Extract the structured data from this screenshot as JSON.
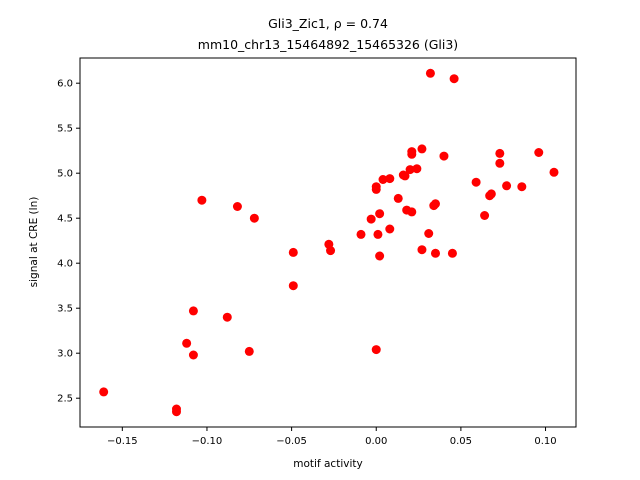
{
  "chart_data": {
    "type": "scatter",
    "title_line1": "Gli3_Zic1, ρ = 0.74",
    "title_line2": "mm10_chr13_15464892_15465326 (Gli3)",
    "xlabel": "motif activity",
    "ylabel": "signal at CRE (ln)",
    "xlim": [
      -0.175,
      0.118
    ],
    "ylim": [
      2.18,
      6.28
    ],
    "xticks": [
      "−0.15",
      "−0.10",
      "−0.05",
      "0.00",
      "0.05",
      "0.10"
    ],
    "xtick_values": [
      -0.15,
      -0.1,
      -0.05,
      0.0,
      0.05,
      0.1
    ],
    "yticks": [
      "2.5",
      "3.0",
      "3.5",
      "4.0",
      "4.5",
      "5.0",
      "5.5",
      "6.0"
    ],
    "ytick_values": [
      2.5,
      3.0,
      3.5,
      4.0,
      4.5,
      5.0,
      5.5,
      6.0
    ],
    "grid": false,
    "point_color": "#ff0000",
    "points": [
      {
        "x": -0.161,
        "y": 2.57
      },
      {
        "x": -0.118,
        "y": 2.38
      },
      {
        "x": -0.118,
        "y": 2.35
      },
      {
        "x": -0.112,
        "y": 3.11
      },
      {
        "x": -0.108,
        "y": 3.47
      },
      {
        "x": -0.108,
        "y": 2.98
      },
      {
        "x": -0.103,
        "y": 4.7
      },
      {
        "x": -0.088,
        "y": 3.4
      },
      {
        "x": -0.082,
        "y": 4.63
      },
      {
        "x": -0.075,
        "y": 3.02
      },
      {
        "x": -0.072,
        "y": 4.5
      },
      {
        "x": -0.049,
        "y": 4.12
      },
      {
        "x": -0.049,
        "y": 3.75
      },
      {
        "x": -0.028,
        "y": 4.21
      },
      {
        "x": -0.027,
        "y": 4.14
      },
      {
        "x": -0.009,
        "y": 4.32
      },
      {
        "x": -0.003,
        "y": 4.49
      },
      {
        "x": 0.0,
        "y": 4.85
      },
      {
        "x": 0.0,
        "y": 4.82
      },
      {
        "x": 0.0,
        "y": 3.04
      },
      {
        "x": 0.001,
        "y": 4.32
      },
      {
        "x": 0.002,
        "y": 4.55
      },
      {
        "x": 0.002,
        "y": 4.08
      },
      {
        "x": 0.004,
        "y": 4.93
      },
      {
        "x": 0.008,
        "y": 4.94
      },
      {
        "x": 0.008,
        "y": 4.38
      },
      {
        "x": 0.013,
        "y": 4.72
      },
      {
        "x": 0.016,
        "y": 4.98
      },
      {
        "x": 0.017,
        "y": 4.97
      },
      {
        "x": 0.018,
        "y": 4.59
      },
      {
        "x": 0.02,
        "y": 5.04
      },
      {
        "x": 0.021,
        "y": 5.24
      },
      {
        "x": 0.021,
        "y": 5.21
      },
      {
        "x": 0.021,
        "y": 4.57
      },
      {
        "x": 0.024,
        "y": 5.05
      },
      {
        "x": 0.027,
        "y": 5.27
      },
      {
        "x": 0.027,
        "y": 4.15
      },
      {
        "x": 0.031,
        "y": 4.33
      },
      {
        "x": 0.032,
        "y": 6.11
      },
      {
        "x": 0.034,
        "y": 4.64
      },
      {
        "x": 0.035,
        "y": 4.66
      },
      {
        "x": 0.035,
        "y": 4.11
      },
      {
        "x": 0.04,
        "y": 5.19
      },
      {
        "x": 0.045,
        "y": 4.11
      },
      {
        "x": 0.046,
        "y": 6.05
      },
      {
        "x": 0.059,
        "y": 4.9
      },
      {
        "x": 0.064,
        "y": 4.53
      },
      {
        "x": 0.067,
        "y": 4.75
      },
      {
        "x": 0.068,
        "y": 4.77
      },
      {
        "x": 0.073,
        "y": 5.22
      },
      {
        "x": 0.073,
        "y": 5.11
      },
      {
        "x": 0.077,
        "y": 4.86
      },
      {
        "x": 0.086,
        "y": 4.85
      },
      {
        "x": 0.096,
        "y": 5.23
      },
      {
        "x": 0.105,
        "y": 5.01
      }
    ]
  }
}
